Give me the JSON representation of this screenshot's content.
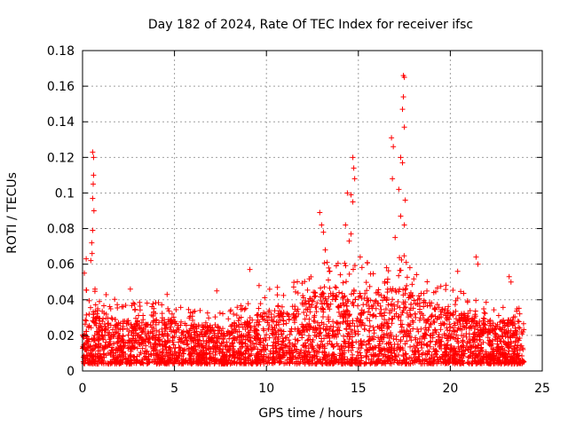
{
  "chart_data": {
    "type": "scatter",
    "title": "Day 182 of 2024, Rate Of TEC Index for receiver ifsc",
    "xlabel": "GPS time / hours",
    "ylabel": "ROTI / TECUs",
    "xlim": [
      0,
      25
    ],
    "ylim": [
      0,
      0.18
    ],
    "xticks": [
      0,
      5,
      10,
      15,
      20,
      25
    ],
    "xtick_labels": [
      "0",
      "5",
      "10",
      "15",
      "20",
      "25"
    ],
    "yticks": [
      0,
      0.02,
      0.04,
      0.06,
      0.08,
      0.1,
      0.12,
      0.14,
      0.16,
      0.18
    ],
    "ytick_labels": [
      "0",
      "0.02",
      "0.04",
      "0.06",
      "0.08",
      "0.1",
      "0.12",
      "0.14",
      "0.16",
      "0.18"
    ],
    "grid": true,
    "marker": "+",
    "color": "#ff0000",
    "series": [
      {
        "name": "ROTI",
        "baseline_profile": {
          "hours": [
            0,
            1,
            2,
            3,
            4,
            5,
            6,
            7,
            8,
            9,
            10,
            11,
            12,
            13,
            14,
            15,
            16,
            17,
            18,
            19,
            20,
            21,
            22,
            23,
            24
          ],
          "typical_max": [
            0.03,
            0.03,
            0.025,
            0.025,
            0.025,
            0.025,
            0.022,
            0.022,
            0.022,
            0.025,
            0.03,
            0.03,
            0.035,
            0.04,
            0.04,
            0.04,
            0.04,
            0.045,
            0.04,
            0.035,
            0.03,
            0.028,
            0.025,
            0.025,
            0.025
          ]
        },
        "notable_points": [
          {
            "x": 0.55,
            "y": 0.123
          },
          {
            "x": 0.6,
            "y": 0.12
          },
          {
            "x": 0.6,
            "y": 0.11
          },
          {
            "x": 0.58,
            "y": 0.105
          },
          {
            "x": 0.55,
            "y": 0.097
          },
          {
            "x": 0.62,
            "y": 0.09
          },
          {
            "x": 0.55,
            "y": 0.079
          },
          {
            "x": 0.5,
            "y": 0.072
          },
          {
            "x": 0.52,
            "y": 0.066
          },
          {
            "x": 0.45,
            "y": 0.062
          },
          {
            "x": 0.2,
            "y": 0.063
          },
          {
            "x": 0.1,
            "y": 0.055
          },
          {
            "x": 2.6,
            "y": 0.046
          },
          {
            "x": 4.6,
            "y": 0.043
          },
          {
            "x": 7.3,
            "y": 0.045
          },
          {
            "x": 9.1,
            "y": 0.057
          },
          {
            "x": 9.6,
            "y": 0.048
          },
          {
            "x": 10.6,
            "y": 0.047
          },
          {
            "x": 12.9,
            "y": 0.089
          },
          {
            "x": 13.0,
            "y": 0.082
          },
          {
            "x": 13.1,
            "y": 0.078
          },
          {
            "x": 13.2,
            "y": 0.068
          },
          {
            "x": 13.3,
            "y": 0.061
          },
          {
            "x": 14.3,
            "y": 0.082
          },
          {
            "x": 14.4,
            "y": 0.1
          },
          {
            "x": 14.6,
            "y": 0.099
          },
          {
            "x": 14.7,
            "y": 0.12
          },
          {
            "x": 14.75,
            "y": 0.114
          },
          {
            "x": 14.8,
            "y": 0.108
          },
          {
            "x": 14.7,
            "y": 0.095
          },
          {
            "x": 14.6,
            "y": 0.077
          },
          {
            "x": 14.5,
            "y": 0.073
          },
          {
            "x": 15.1,
            "y": 0.064
          },
          {
            "x": 16.8,
            "y": 0.131
          },
          {
            "x": 16.9,
            "y": 0.126
          },
          {
            "x": 16.85,
            "y": 0.108
          },
          {
            "x": 17.3,
            "y": 0.12
          },
          {
            "x": 17.4,
            "y": 0.117
          },
          {
            "x": 17.2,
            "y": 0.102
          },
          {
            "x": 17.45,
            "y": 0.166
          },
          {
            "x": 17.5,
            "y": 0.165
          },
          {
            "x": 17.45,
            "y": 0.154
          },
          {
            "x": 17.4,
            "y": 0.147
          },
          {
            "x": 17.5,
            "y": 0.137
          },
          {
            "x": 17.55,
            "y": 0.096
          },
          {
            "x": 17.3,
            "y": 0.087
          },
          {
            "x": 17.5,
            "y": 0.082
          },
          {
            "x": 17.0,
            "y": 0.075
          },
          {
            "x": 17.6,
            "y": 0.061
          },
          {
            "x": 21.4,
            "y": 0.064
          },
          {
            "x": 21.5,
            "y": 0.06
          },
          {
            "x": 20.4,
            "y": 0.056
          },
          {
            "x": 23.2,
            "y": 0.053
          },
          {
            "x": 23.3,
            "y": 0.05
          }
        ]
      }
    ]
  }
}
